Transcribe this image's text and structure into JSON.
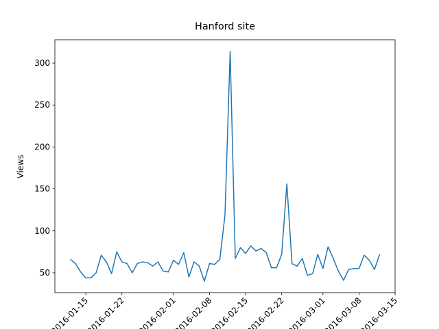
{
  "chart_data": {
    "type": "line",
    "title": "Hanford site",
    "y_label": "Views",
    "color": "#1f77b4",
    "x": [
      "2016-01-12",
      "2016-01-13",
      "2016-01-14",
      "2016-01-15",
      "2016-01-16",
      "2016-01-17",
      "2016-01-18",
      "2016-01-19",
      "2016-01-20",
      "2016-01-21",
      "2016-01-22",
      "2016-01-23",
      "2016-01-24",
      "2016-01-25",
      "2016-01-26",
      "2016-01-27",
      "2016-01-28",
      "2016-01-29",
      "2016-01-30",
      "2016-01-31",
      "2016-02-01",
      "2016-02-02",
      "2016-02-03",
      "2016-02-04",
      "2016-02-05",
      "2016-02-06",
      "2016-02-07",
      "2016-02-08",
      "2016-02-09",
      "2016-02-10",
      "2016-02-11",
      "2016-02-12",
      "2016-02-13",
      "2016-02-14",
      "2016-02-15",
      "2016-02-16",
      "2016-02-17",
      "2016-02-18",
      "2016-02-19",
      "2016-02-20",
      "2016-02-21",
      "2016-02-22",
      "2016-02-23",
      "2016-02-24",
      "2016-02-25",
      "2016-02-26",
      "2016-02-27",
      "2016-02-28",
      "2016-02-29",
      "2016-03-01",
      "2016-03-02",
      "2016-03-03",
      "2016-03-04",
      "2016-03-05",
      "2016-03-06",
      "2016-03-07",
      "2016-03-08",
      "2016-03-09",
      "2016-03-10",
      "2016-03-11",
      "2016-03-12"
    ],
    "values": [
      66,
      61,
      51,
      44,
      44,
      50,
      71,
      63,
      49,
      75,
      63,
      61,
      50,
      61,
      63,
      62,
      58,
      63,
      52,
      51,
      65,
      60,
      74,
      45,
      63,
      58,
      40,
      61,
      60,
      66,
      119,
      314,
      67,
      80,
      73,
      82,
      76,
      79,
      74,
      56,
      56,
      72,
      156,
      61,
      58,
      67,
      47,
      49,
      72,
      55,
      81,
      67,
      52,
      41,
      54,
      55,
      55,
      71,
      65,
      54,
      72
    ],
    "xlim": [
      "2016-01-09",
      "2016-03-15"
    ],
    "xticks": [
      "2016-01-15",
      "2016-01-22",
      "2016-02-01",
      "2016-02-08",
      "2016-02-15",
      "2016-02-22",
      "2016-03-01",
      "2016-03-08",
      "2016-03-15"
    ],
    "ylim": [
      26.3,
      327.8
    ],
    "yticks": [
      50,
      100,
      150,
      200,
      250,
      300
    ]
  }
}
